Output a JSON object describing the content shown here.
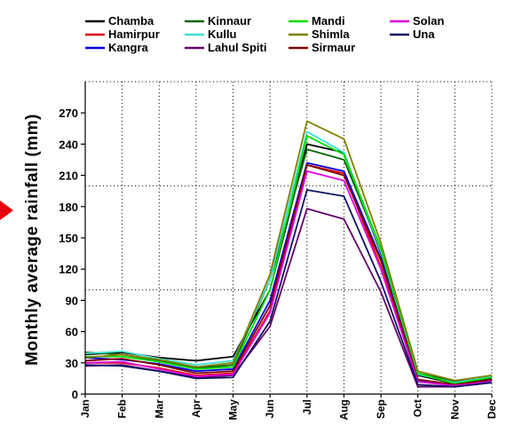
{
  "chart_data": {
    "type": "line",
    "title": "",
    "xlabel": "",
    "ylabel": "Monthly average rainfall (mm)",
    "ylim": [
      0,
      300
    ],
    "yticks": [
      0,
      30,
      60,
      90,
      120,
      150,
      180,
      210,
      240,
      270
    ],
    "grid": true,
    "legend_position": "top",
    "categories": [
      "Jan",
      "Feb",
      "Mar",
      "Apr",
      "May",
      "Jun",
      "Jul",
      "Aug",
      "Sep",
      "Oct",
      "Nov",
      "Dec"
    ],
    "series": [
      {
        "name": "Chamba",
        "color": "#000000",
        "values": [
          38,
          40,
          35,
          32,
          36,
          100,
          240,
          232,
          135,
          18,
          10,
          15
        ]
      },
      {
        "name": "Hamirpur",
        "color": "#e00000",
        "values": [
          30,
          30,
          25,
          18,
          20,
          80,
          220,
          212,
          122,
          12,
          8,
          12
        ]
      },
      {
        "name": "Kangra",
        "color": "#0000e0",
        "values": [
          35,
          33,
          29,
          22,
          24,
          90,
          222,
          214,
          130,
          13,
          9,
          13
        ]
      },
      {
        "name": "Kinnaur",
        "color": "#006400",
        "values": [
          40,
          38,
          32,
          25,
          28,
          110,
          235,
          225,
          138,
          20,
          12,
          16
        ]
      },
      {
        "name": "Kullu",
        "color": "#40e0d0",
        "values": [
          39,
          41,
          34,
          28,
          32,
          110,
          252,
          232,
          137,
          19,
          11,
          17
        ]
      },
      {
        "name": "Lahul Spiti",
        "color": "#660066",
        "values": [
          27,
          28,
          22,
          16,
          18,
          65,
          178,
          168,
          98,
          7,
          7,
          11
        ]
      },
      {
        "name": "Mandi",
        "color": "#00dd00",
        "values": [
          36,
          36,
          31,
          24,
          26,
          100,
          248,
          230,
          140,
          20,
          10,
          16
        ]
      },
      {
        "name": "Shimla",
        "color": "#808000",
        "values": [
          35,
          38,
          33,
          26,
          30,
          115,
          262,
          245,
          145,
          22,
          13,
          18
        ]
      },
      {
        "name": "Sirmaur",
        "color": "#800000",
        "values": [
          32,
          34,
          28,
          20,
          22,
          85,
          220,
          210,
          128,
          14,
          9,
          14
        ]
      },
      {
        "name": "Solan",
        "color": "#e000e0",
        "values": [
          30,
          31,
          24,
          17,
          19,
          78,
          214,
          205,
          120,
          12,
          8,
          12
        ]
      },
      {
        "name": "Una",
        "color": "#101066",
        "values": [
          28,
          27,
          22,
          15,
          16,
          70,
          196,
          190,
          108,
          9,
          7,
          11
        ]
      }
    ]
  },
  "colors": {
    "marker": "#e8000e",
    "grid": "#000000"
  }
}
